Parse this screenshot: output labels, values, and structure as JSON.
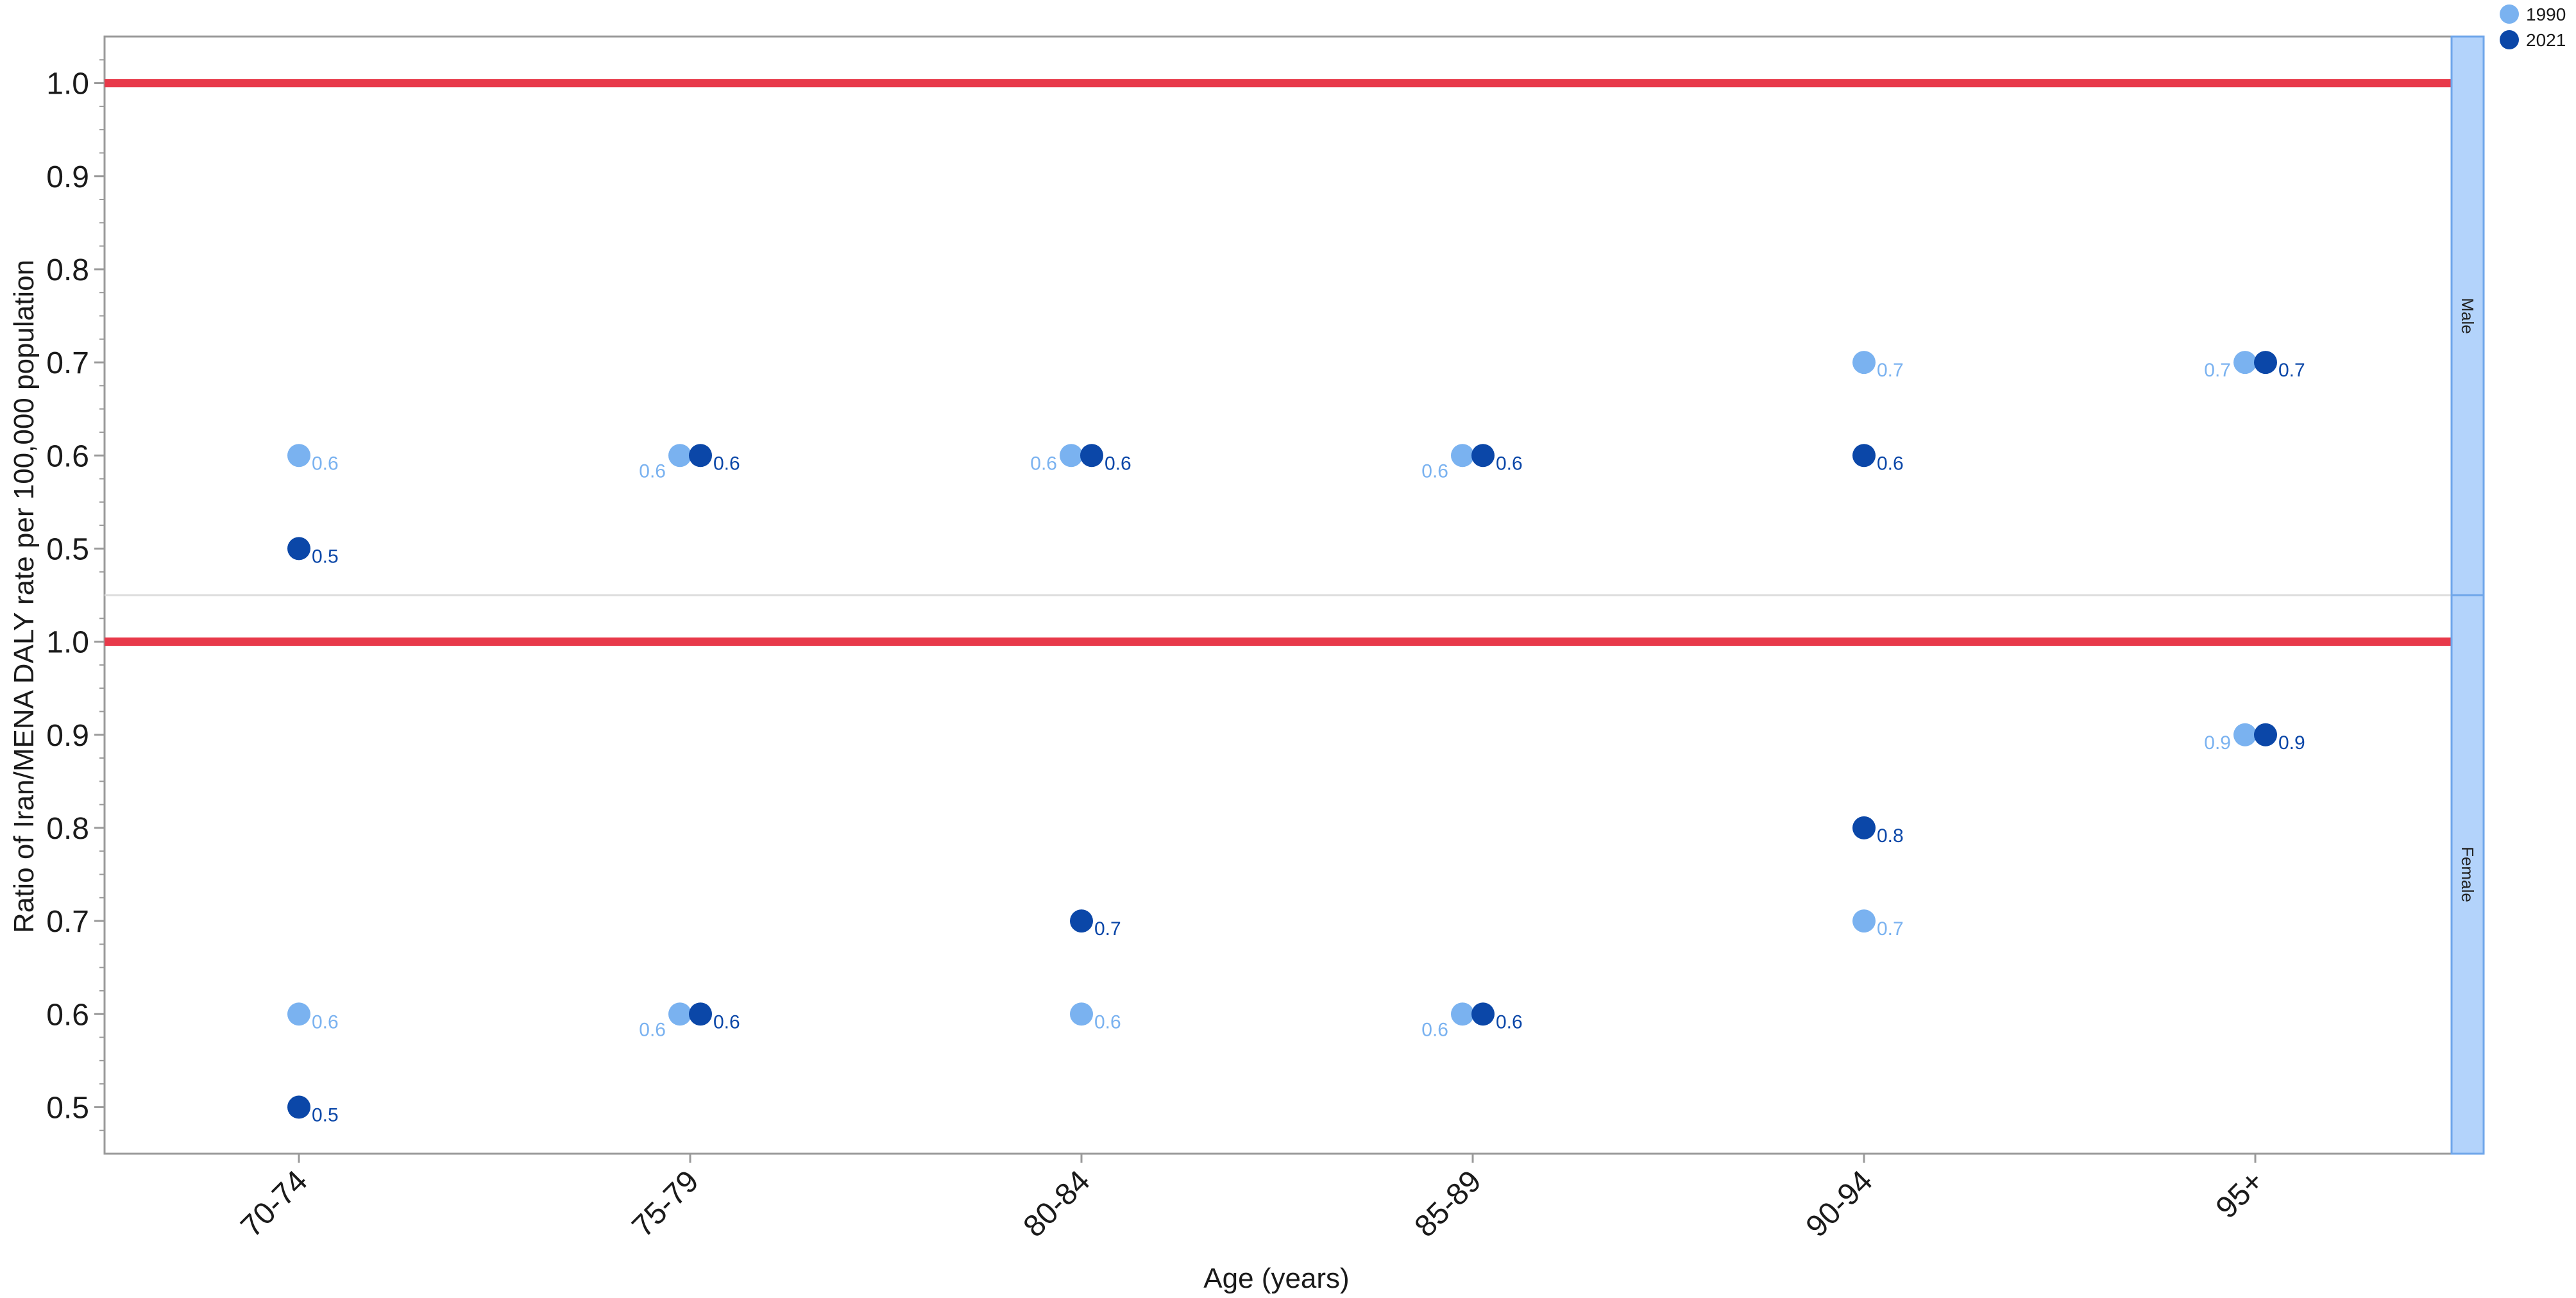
{
  "chart_data": {
    "type": "scatter",
    "xlabel": "Age (years)",
    "ylabel": "Ratio of Iran/MENA DALY rate per 100,000 population",
    "categories": [
      "70-74",
      "75-79",
      "80-84",
      "85-89",
      "90-94",
      "95+"
    ],
    "ylim": [
      0.45,
      1.05
    ],
    "yticks": [
      0.5,
      0.6,
      0.7,
      0.8,
      0.9,
      1.0
    ],
    "yticklabels": [
      "0.5",
      "0.6",
      "0.7",
      "0.8",
      "0.9",
      "1.0"
    ],
    "reference_line": 1.0,
    "grid": false,
    "legend_position": "top-right",
    "colors": {
      "1990": "#7ab2f0",
      "2021": "#0b47a8",
      "reference": "#e8394a",
      "strip": "#b3d3fb",
      "strip_border": "#6fa6ea",
      "axis": "#9a9a9a"
    },
    "legend": [
      {
        "name": "1990",
        "color": "#7ab2f0"
      },
      {
        "name": "2021",
        "color": "#0b47a8"
      }
    ],
    "panels": [
      {
        "name": "Male",
        "series": [
          {
            "name": "1990",
            "values": [
              0.6,
              0.6,
              0.6,
              0.6,
              0.7,
              0.7
            ],
            "labels": [
              "0.6",
              "0.6",
              "0.6",
              "0.6",
              "0.7",
              "0.7"
            ]
          },
          {
            "name": "2021",
            "values": [
              0.5,
              0.6,
              0.6,
              0.6,
              0.6,
              0.7
            ],
            "labels": [
              "0.5",
              "0.6",
              "0.6",
              "0.6",
              "0.6",
              "0.7"
            ]
          }
        ]
      },
      {
        "name": "Female",
        "series": [
          {
            "name": "1990",
            "values": [
              0.6,
              0.6,
              0.6,
              0.6,
              0.7,
              0.9
            ],
            "labels": [
              "0.6",
              "0.6",
              "0.6",
              "0.6",
              "0.7",
              "0.9"
            ]
          },
          {
            "name": "2021",
            "values": [
              0.5,
              0.6,
              0.7,
              0.6,
              0.8,
              0.9
            ],
            "labels": [
              "0.5",
              "0.6",
              "0.7",
              "0.6",
              "0.8",
              "0.9"
            ]
          }
        ]
      }
    ]
  }
}
